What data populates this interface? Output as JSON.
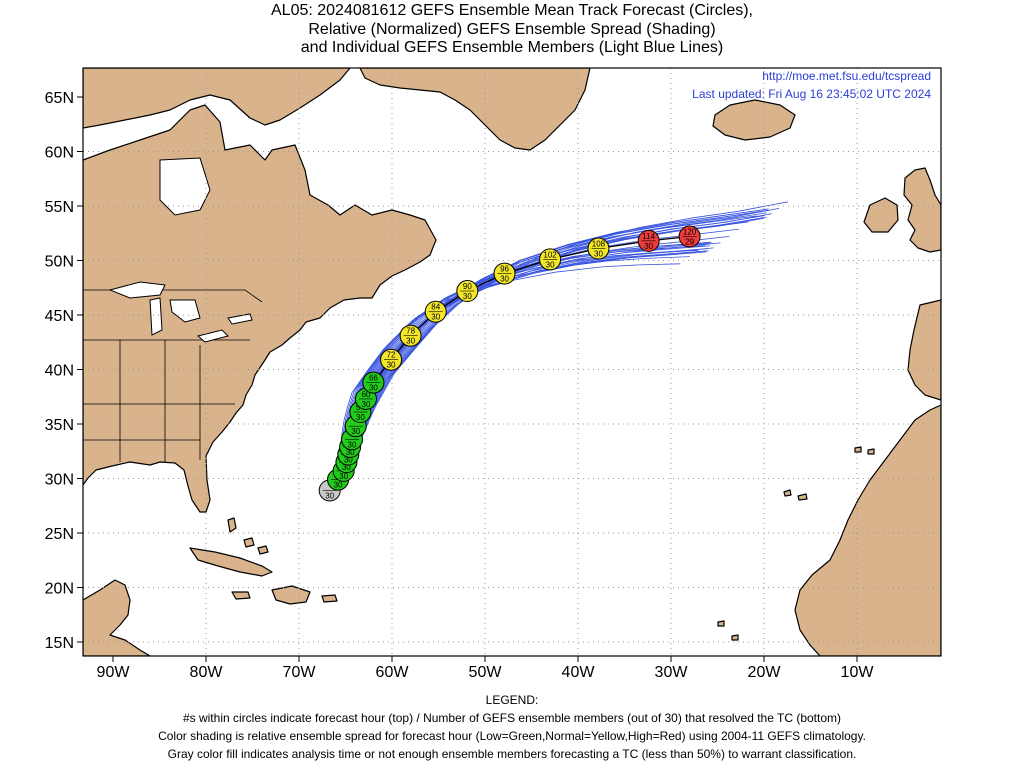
{
  "title": {
    "line1": "AL05: 2024081612 GEFS Ensemble Mean Track Forecast (Circles),",
    "line2": "Relative (Normalized) GEFS Ensemble Spread (Shading)",
    "line3": "and Individual GEFS Ensemble Members (Light Blue Lines)"
  },
  "source": {
    "url": "http://moe.met.fsu.edu/tcspread",
    "updated": "Last updated: Fri Aug 16 23:45:02 UTC 2024"
  },
  "axes": {
    "lon_labels": [
      "90W",
      "80W",
      "70W",
      "60W",
      "50W",
      "40W",
      "30W",
      "20W",
      "10W"
    ],
    "lat_labels": [
      "65N",
      "60N",
      "55N",
      "50N",
      "45N",
      "40N",
      "35N",
      "30N",
      "25N",
      "20N",
      "15N"
    ]
  },
  "colors": {
    "land": "#d9b38c",
    "ocean": "#ffffff",
    "members": "#3a55e0",
    "track": "#000000",
    "gray": "#c8c8c8",
    "green": "#22cc1a",
    "yellow": "#f2e628",
    "red": "#ee3b3b"
  },
  "track_points": [
    {
      "lon": -66.7,
      "lat": 28.9,
      "hour": "",
      "members": "30",
      "spread": "gray"
    },
    {
      "lon": -65.8,
      "lat": 29.9,
      "hour": "",
      "members": "30",
      "spread": "green"
    },
    {
      "lon": -65.2,
      "lat": 30.7,
      "hour": "",
      "members": "30",
      "spread": "green"
    },
    {
      "lon": -64.9,
      "lat": 31.5,
      "hour": "",
      "members": "30",
      "spread": "green"
    },
    {
      "lon": -64.7,
      "lat": 32.2,
      "hour": "",
      "members": "30",
      "spread": "green"
    },
    {
      "lon": -64.5,
      "lat": 32.9,
      "hour": "",
      "members": "30",
      "spread": "green"
    },
    {
      "lon": -64.3,
      "lat": 33.6,
      "hour": "",
      "members": "30",
      "spread": "green"
    },
    {
      "lon": -63.9,
      "lat": 34.8,
      "hour": "",
      "members": "30",
      "spread": "green"
    },
    {
      "lon": -63.4,
      "lat": 36.1,
      "hour": "54",
      "members": "30",
      "spread": "green"
    },
    {
      "lon": -62.8,
      "lat": 37.3,
      "hour": "60",
      "members": "30",
      "spread": "green"
    },
    {
      "lon": -62.0,
      "lat": 38.8,
      "hour": "66",
      "members": "30",
      "spread": "green"
    },
    {
      "lon": -60.1,
      "lat": 40.9,
      "hour": "72",
      "members": "30",
      "spread": "yellow"
    },
    {
      "lon": -58.0,
      "lat": 43.1,
      "hour": "78",
      "members": "30",
      "spread": "yellow"
    },
    {
      "lon": -55.3,
      "lat": 45.3,
      "hour": "84",
      "members": "30",
      "spread": "yellow"
    },
    {
      "lon": -51.9,
      "lat": 47.2,
      "hour": "90",
      "members": "30",
      "spread": "yellow"
    },
    {
      "lon": -47.9,
      "lat": 48.8,
      "hour": "96",
      "members": "30",
      "spread": "yellow"
    },
    {
      "lon": -43.0,
      "lat": 50.1,
      "hour": "102",
      "members": "30",
      "spread": "yellow"
    },
    {
      "lon": -37.8,
      "lat": 51.1,
      "hour": "108",
      "members": "30",
      "spread": "yellow"
    },
    {
      "lon": -32.4,
      "lat": 51.8,
      "hour": "114",
      "members": "30",
      "spread": "red"
    },
    {
      "lon": -28.0,
      "lat": 52.2,
      "hour": "120",
      "members": "29",
      "spread": "red"
    }
  ],
  "legend": {
    "heading": "LEGEND:",
    "line1": "#s within circles indicate forecast hour (top) / Number of GEFS ensemble members (out of 30) that resolved the TC (bottom)",
    "line2": "Color shading is relative ensemble spread for forecast hour (Low=Green,Normal=Yellow,High=Red) using 2004-11 GEFS climatology.",
    "line3": "Gray color fill indicates analysis time or not enough ensemble members forecasting a TC (less than 50%) to warrant classification."
  }
}
